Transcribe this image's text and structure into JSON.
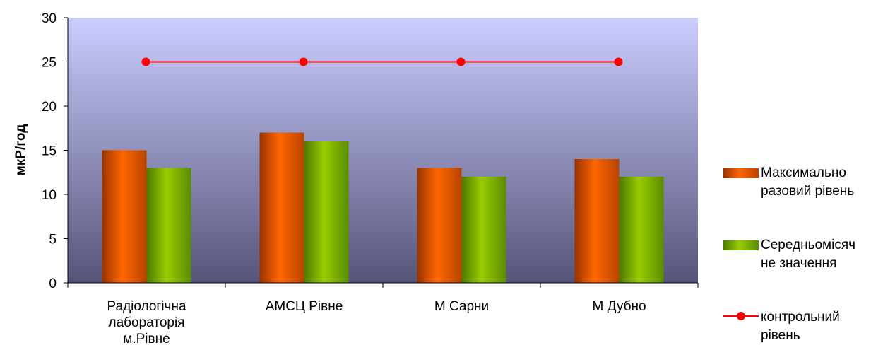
{
  "chart_data": {
    "type": "bar",
    "ylabel": "мкР/год",
    "ylim": [
      0,
      30
    ],
    "yticks": [
      0,
      5,
      10,
      15,
      20,
      25,
      30
    ],
    "grid": false,
    "legend_position": "right",
    "categories": [
      [
        "Радіологічна",
        "лабораторія",
        "м.Рівне"
      ],
      [
        "АМСЦ Рівне"
      ],
      [
        "М Сарни"
      ],
      [
        "М Дубно"
      ]
    ],
    "series": [
      {
        "name": [
          "Максимально",
          "разовий рівень"
        ],
        "type": "bar",
        "values": [
          15,
          17,
          13,
          14
        ],
        "color": "#ff6600"
      },
      {
        "name": [
          "Середньомісяч",
          "не значення"
        ],
        "type": "bar",
        "values": [
          13,
          16,
          12,
          12
        ],
        "color": "#80c000"
      },
      {
        "name": [
          "контрольний",
          "рівень"
        ],
        "type": "line",
        "values": [
          25,
          25,
          25,
          25
        ],
        "color": "#ff0000"
      }
    ]
  }
}
